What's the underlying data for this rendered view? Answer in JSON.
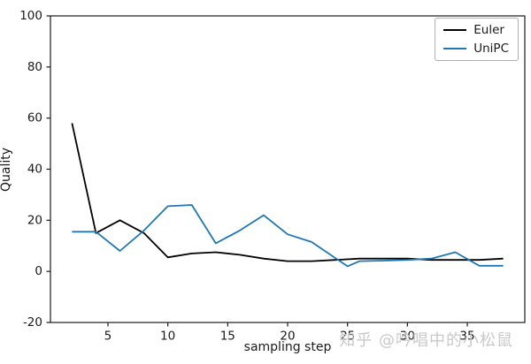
{
  "figure": {
    "background": "#ffffff"
  },
  "watermark": {
    "text": "知乎 @吟唱中的小松鼠",
    "color": "#c9c9c9"
  },
  "chart_data": {
    "type": "line",
    "title": "",
    "xlabel": "sampling step",
    "ylabel": "Quality",
    "xlim": [
      0.2,
      39.8
    ],
    "ylim": [
      -20,
      100
    ],
    "xticks": [
      5,
      10,
      15,
      20,
      25,
      30,
      35
    ],
    "yticks": [
      -20,
      0,
      20,
      40,
      60,
      80,
      100
    ],
    "grid": false,
    "legend": {
      "position": "upper-right",
      "border_color": "#b0b0b0"
    },
    "axis_color": "#1a1a1a",
    "series": [
      {
        "name": "Euler",
        "color": "#000000",
        "x": [
          2,
          4,
          6,
          8,
          10,
          12,
          14,
          16,
          18,
          20,
          22,
          24,
          26,
          28,
          30,
          32,
          34,
          36,
          38
        ],
        "y": [
          58,
          15,
          20,
          15,
          5.5,
          7,
          7.5,
          6.5,
          5,
          4,
          4,
          4.5,
          5,
          5,
          5,
          4.5,
          4.5,
          4.5,
          5
        ]
      },
      {
        "name": "UniPC",
        "color": "#1f77b4",
        "x": [
          2,
          4,
          6,
          8,
          10,
          12,
          14,
          16,
          18,
          20,
          22,
          25,
          26,
          28,
          30,
          32,
          34,
          36,
          38
        ],
        "y": [
          15.5,
          15.5,
          8,
          16,
          25.5,
          26,
          11,
          16,
          22,
          14.5,
          11.5,
          2,
          4,
          4.2,
          4.5,
          5,
          7.5,
          2.2,
          2.2
        ]
      }
    ]
  }
}
